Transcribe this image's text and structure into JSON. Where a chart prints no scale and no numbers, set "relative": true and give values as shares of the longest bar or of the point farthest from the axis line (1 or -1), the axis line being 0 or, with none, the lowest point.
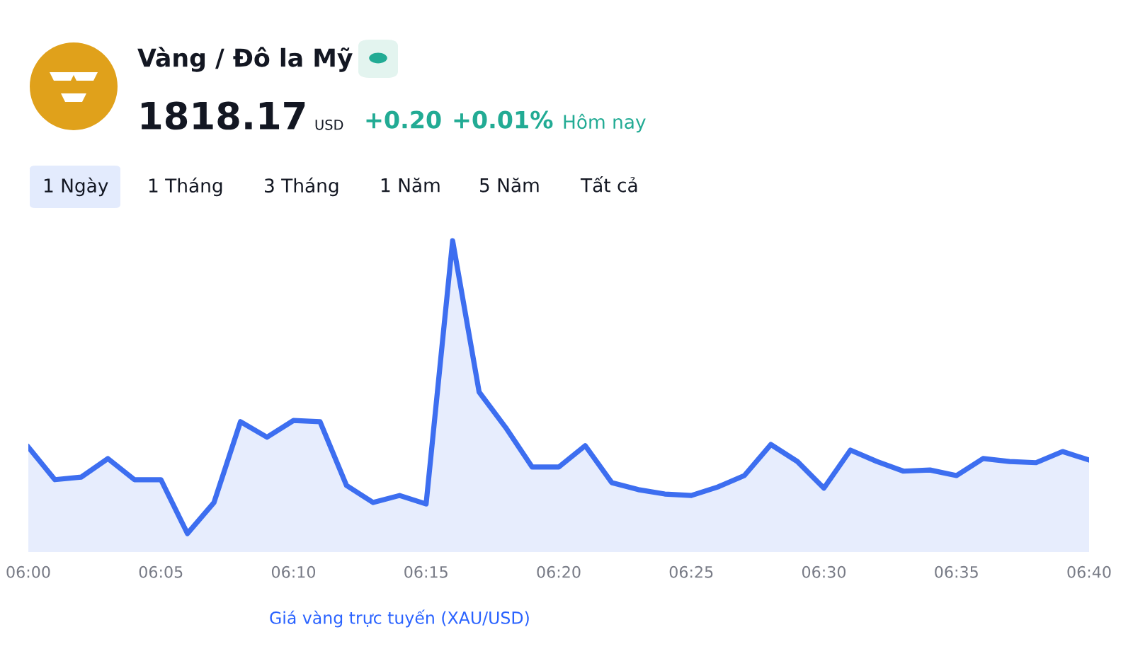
{
  "chart_data": {
    "type": "area",
    "title": "Vàng / Đô la Mỹ",
    "relative": true,
    "grid": false,
    "legend": false,
    "marker": "none",
    "line_style": "solid",
    "x": [
      6.0,
      6.016667,
      6.033333,
      6.05,
      6.066667,
      6.083333,
      6.1,
      6.116667,
      6.133333,
      6.15,
      6.166667,
      6.183333,
      6.2,
      6.216667,
      6.233333,
      6.25,
      6.266667,
      6.283333,
      6.3,
      6.316667,
      6.333333,
      6.35,
      6.366667,
      6.383333,
      6.4,
      6.416667,
      6.433333,
      6.45,
      6.466667,
      6.483333,
      6.5,
      6.516667,
      6.533333,
      6.55,
      6.566667,
      6.583333,
      6.6,
      6.616667,
      6.633333,
      6.65,
      6.666667
    ],
    "xlim": [
      6.0,
      6.666667
    ],
    "xticks": [
      {
        "value": 6.0,
        "label": "06:00"
      },
      {
        "value": 6.083333,
        "label": "06:05"
      },
      {
        "value": 6.166667,
        "label": "06:10"
      },
      {
        "value": 6.25,
        "label": "06:15"
      },
      {
        "value": 6.333333,
        "label": "06:20"
      },
      {
        "value": 6.416667,
        "label": "06:25"
      },
      {
        "value": 6.5,
        "label": "06:30"
      },
      {
        "value": 6.583333,
        "label": "06:35"
      },
      {
        "value": 6.666667,
        "label": "06:40"
      }
    ],
    "series": [
      {
        "color": "#3d6ef0",
        "values": [
          0.295,
          0.184,
          0.193,
          0.256,
          0.184,
          0.184,
          0.0,
          0.106,
          0.382,
          0.329,
          0.386,
          0.382,
          0.164,
          0.106,
          0.13,
          0.101,
          1.0,
          0.483,
          0.362,
          0.227,
          0.227,
          0.3,
          0.174,
          0.15,
          0.135,
          0.13,
          0.159,
          0.198,
          0.304,
          0.246,
          0.155,
          0.285,
          0.246,
          0.213,
          0.217,
          0.198,
          0.256,
          0.246,
          0.242,
          0.28,
          0.251
        ]
      }
    ],
    "annotations": [
      "1818.17",
      "USD",
      "+0.20",
      "+0.01%",
      "Hôm nay",
      "1 Ngày",
      "1 Tháng",
      "3 Tháng",
      "1 Năm",
      "5 Năm",
      "Tất cả",
      "Giá vàng trực tuyến (XAU/USD)"
    ]
  }
}
